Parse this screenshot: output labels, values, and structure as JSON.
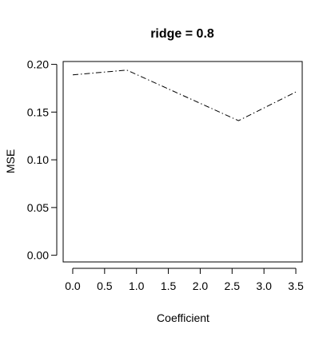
{
  "chart_data": {
    "type": "line",
    "title": "ridge = 0.8",
    "xlabel": "Coefficient",
    "ylabel": "MSE",
    "xlim": [
      -0.15,
      3.6
    ],
    "ylim": [
      -0.007,
      0.203
    ],
    "x_ticks": [
      "0.0",
      "0.5",
      "1.0",
      "1.5",
      "2.0",
      "2.5",
      "3.0",
      "3.5"
    ],
    "y_ticks": [
      "0.00",
      "0.05",
      "0.10",
      "0.15",
      "0.20"
    ],
    "grid": false,
    "line_style": "dashdot",
    "line_color": "#000000",
    "series": [
      {
        "x": [
          0.0,
          0.85,
          2.6,
          3.5
        ],
        "values": [
          0.189,
          0.194,
          0.141,
          0.171
        ]
      }
    ]
  }
}
